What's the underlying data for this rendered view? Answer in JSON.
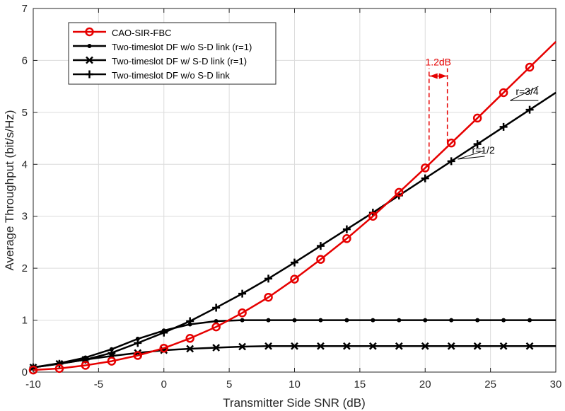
{
  "chart_data": {
    "type": "line",
    "xlabel": "Transmitter Side SNR (dB)",
    "ylabel": "Average Throughput (bit/s/Hz)",
    "xlim": [
      -10,
      30
    ],
    "ylim": [
      0,
      7
    ],
    "xticks": [
      "-10",
      "-5",
      "0",
      "5",
      "10",
      "15",
      "20",
      "25",
      "30"
    ],
    "yticks": [
      "0",
      "1",
      "2",
      "3",
      "4",
      "5",
      "6",
      "7"
    ],
    "grid": true,
    "legend_position": "top-left",
    "series": [
      {
        "name": "CAO-SIR-FBC",
        "color": "#e60000",
        "marker": "circle",
        "x": [
          -10,
          -8,
          -6,
          -4,
          -2,
          0,
          2,
          4,
          6,
          8,
          10,
          12,
          14,
          16,
          18,
          20,
          22,
          24,
          26,
          28,
          30
        ],
        "y": [
          0.04,
          0.07,
          0.13,
          0.21,
          0.32,
          0.46,
          0.65,
          0.87,
          1.14,
          1.44,
          1.79,
          2.17,
          2.57,
          3.0,
          3.46,
          3.93,
          4.41,
          4.89,
          5.38,
          5.87,
          6.36
        ],
        "marker_x": [
          -10,
          -8,
          -6,
          -4,
          -2,
          0,
          2,
          4,
          6,
          8,
          10,
          12,
          14,
          16,
          18,
          20,
          22,
          24,
          26,
          28
        ]
      },
      {
        "name": "Two-timeslot DF w/o S-D link (r=1)",
        "color": "#000000",
        "marker": "dot",
        "x": [
          -10,
          -8,
          -6,
          -4,
          -2,
          0,
          2,
          4,
          6,
          8,
          10,
          12,
          14,
          16,
          18,
          20,
          22,
          24,
          26,
          28,
          30
        ],
        "y": [
          0.09,
          0.17,
          0.28,
          0.44,
          0.64,
          0.8,
          0.92,
          0.98,
          1.0,
          1.0,
          1.0,
          1.0,
          1.0,
          1.0,
          1.0,
          1.0,
          1.0,
          1.0,
          1.0,
          1.0,
          1.0
        ],
        "marker_x": [
          -10,
          -8,
          -6,
          -4,
          -2,
          0,
          2,
          4,
          6,
          8,
          10,
          12,
          14,
          16,
          18,
          20,
          22,
          24,
          26,
          28
        ]
      },
      {
        "name": "Two-timeslot DF w/ S-D link (r=1)",
        "color": "#000000",
        "marker": "x",
        "x": [
          -10,
          -8,
          -6,
          -4,
          -2,
          0,
          2,
          4,
          6,
          8,
          10,
          12,
          14,
          16,
          18,
          20,
          22,
          24,
          26,
          28,
          30
        ],
        "y": [
          0.09,
          0.16,
          0.24,
          0.31,
          0.37,
          0.42,
          0.45,
          0.47,
          0.49,
          0.5,
          0.5,
          0.5,
          0.5,
          0.5,
          0.5,
          0.5,
          0.5,
          0.5,
          0.5,
          0.5,
          0.5
        ],
        "marker_x": [
          -10,
          -8,
          -6,
          -4,
          -2,
          0,
          2,
          4,
          6,
          8,
          10,
          12,
          14,
          16,
          18,
          20,
          22,
          24,
          26,
          28
        ]
      },
      {
        "name": "Two-timeslot DF w/o S-D link",
        "color": "#000000",
        "marker": "plus",
        "x": [
          -10,
          -8,
          -6,
          -4,
          -2,
          0,
          2,
          4,
          6,
          8,
          10,
          12,
          14,
          16,
          18,
          20,
          22,
          24,
          26,
          28,
          30
        ],
        "y": [
          0.09,
          0.16,
          0.24,
          0.37,
          0.56,
          0.76,
          0.98,
          1.24,
          1.51,
          1.8,
          2.11,
          2.43,
          2.75,
          3.07,
          3.4,
          3.73,
          4.06,
          4.39,
          4.72,
          5.05,
          5.38
        ],
        "marker_x": [
          -10,
          -8,
          -6,
          -4,
          -2,
          0,
          2,
          4,
          6,
          8,
          10,
          12,
          14,
          16,
          18,
          20,
          22,
          24,
          26,
          28
        ]
      }
    ],
    "annotations": {
      "gap_label": "1.2dB",
      "gap_color": "#e60000",
      "gap_x": [
        20.3,
        21.7
      ],
      "gap_bottom_y": [
        3.93,
        4.41
      ],
      "gap_top_y": 5.85,
      "gap_arrow_y": 5.7,
      "rate_upper": {
        "label": "r=3/4",
        "point": [
          26.5,
          5.2
        ]
      },
      "rate_lower": {
        "label": "r=1/2",
        "point": [
          22.5,
          4.1
        ]
      }
    }
  }
}
